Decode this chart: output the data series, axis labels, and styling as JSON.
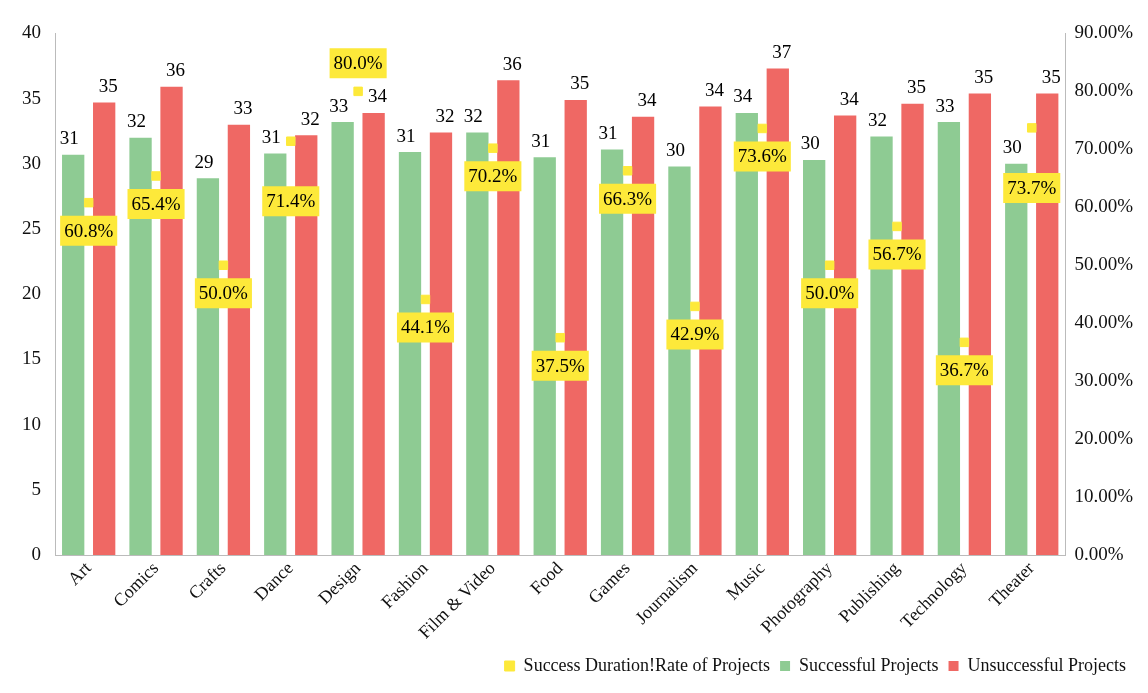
{
  "chart_data": {
    "type": "bar",
    "categories": [
      "Art",
      "Comics",
      "Crafts",
      "Dance",
      "Design",
      "Fashion",
      "Film & Video",
      "Food",
      "Games",
      "Journalism",
      "Music",
      "Photography",
      "Publishing",
      "Technology",
      "Theater"
    ],
    "series": [
      {
        "name": "Successful Projects",
        "color": "#8ecb93",
        "values": [
          30.7,
          32.0,
          28.9,
          30.8,
          33.2,
          30.9,
          32.4,
          30.5,
          31.1,
          29.8,
          33.9,
          30.3,
          32.1,
          33.2,
          30.0
        ],
        "value_labels": [
          "31",
          "32",
          "29",
          "31",
          "33",
          "31",
          "32",
          "31",
          "31",
          "30",
          "34",
          "30",
          "32",
          "33",
          "30"
        ]
      },
      {
        "name": "Unsuccessful Projects",
        "color": "#ef6864",
        "values": [
          34.7,
          35.9,
          33.0,
          32.2,
          33.9,
          32.4,
          36.4,
          34.9,
          33.6,
          34.4,
          37.3,
          33.7,
          34.6,
          35.4,
          35.4
        ],
        "value_labels": [
          "35",
          "36",
          "33",
          "32",
          "34",
          "32",
          "36",
          "35",
          "34",
          "34",
          "37",
          "34",
          "35",
          "35",
          "35"
        ]
      },
      {
        "name": "Success Duration!Rate of Projects",
        "type": "scatter",
        "axis": "y2",
        "color": "#fde93a",
        "values": [
          60.8,
          65.4,
          50.0,
          71.4,
          80.0,
          44.1,
          70.2,
          37.5,
          66.3,
          42.9,
          73.6,
          50.0,
          56.7,
          36.7,
          73.7
        ],
        "value_labels": [
          "60.8%",
          "65.4%",
          "50.0%",
          "71.4%",
          "80.0%",
          "44.1%",
          "70.2%",
          "37.5%",
          "66.3%",
          "42.9%",
          "73.6%",
          "50.0%",
          "56.7%",
          "36.7%",
          "73.7%"
        ]
      }
    ],
    "ylim": [
      0,
      40
    ],
    "yticks": [
      0,
      5,
      10,
      15,
      20,
      25,
      30,
      35,
      40
    ],
    "y2lim": [
      0,
      90
    ],
    "y2ticks": [
      {
        "value": 0,
        "label": "0.00%"
      },
      {
        "value": 10,
        "label": "10.00%"
      },
      {
        "value": 20,
        "label": "20.00%"
      },
      {
        "value": 30,
        "label": "30.00%"
      },
      {
        "value": 40,
        "label": "40.00%"
      },
      {
        "value": 50,
        "label": "50.00%"
      },
      {
        "value": 60,
        "label": "60.00%"
      },
      {
        "value": 70,
        "label": "70.00%"
      },
      {
        "value": 80,
        "label": "80.00%"
      },
      {
        "value": 90,
        "label": "90.00%"
      }
    ],
    "grid": false,
    "legend": "bottom right",
    "marker": "square"
  }
}
